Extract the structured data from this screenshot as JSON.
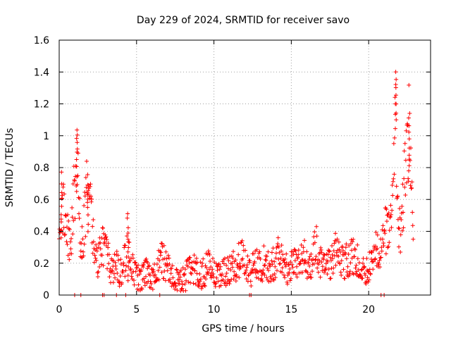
{
  "chart_data": {
    "type": "scatter",
    "title": "Day 229 of 2024, SRMTID for receiver savo",
    "xlabel": "GPS time / hours",
    "ylabel": "SRMTID / TECUs",
    "xlim": [
      0,
      24
    ],
    "ylim": [
      0,
      1.6
    ],
    "xticks": [
      0,
      5,
      10,
      15,
      20
    ],
    "xtick_labels": [
      "0",
      "5",
      "10",
      "15",
      "20"
    ],
    "yticks": [
      0,
      0.2,
      0.4,
      0.6,
      0.8,
      1,
      1.2,
      1.4,
      1.6
    ],
    "ytick_labels": [
      "0",
      "0.2",
      "0.4",
      "0.6",
      "0.8",
      "1",
      "1.2",
      "1.4",
      "1.6"
    ],
    "grid": true,
    "marker": "+",
    "series": [
      {
        "name": "savo",
        "color": "#ff0000",
        "profile": [
          [
            0.0,
            0.55
          ],
          [
            0.15,
            0.65
          ],
          [
            0.3,
            0.5
          ],
          [
            0.45,
            0.4
          ],
          [
            0.6,
            0.38
          ],
          [
            0.75,
            0.3
          ],
          [
            0.9,
            0.55
          ],
          [
            1.05,
            0.75
          ],
          [
            1.15,
            0.95
          ],
          [
            1.25,
            0.6
          ],
          [
            1.4,
            0.3
          ],
          [
            1.55,
            0.35
          ],
          [
            1.7,
            0.55
          ],
          [
            1.85,
            0.72
          ],
          [
            2.0,
            0.65
          ],
          [
            2.15,
            0.4
          ],
          [
            2.3,
            0.28
          ],
          [
            2.5,
            0.22
          ],
          [
            2.7,
            0.28
          ],
          [
            2.9,
            0.3
          ],
          [
            3.1,
            0.25
          ],
          [
            3.3,
            0.18
          ],
          [
            3.5,
            0.15
          ],
          [
            3.7,
            0.2
          ],
          [
            3.9,
            0.15
          ],
          [
            4.1,
            0.14
          ],
          [
            4.3,
            0.25
          ],
          [
            4.45,
            0.4
          ],
          [
            4.6,
            0.22
          ],
          [
            4.8,
            0.15
          ],
          [
            5.0,
            0.12
          ],
          [
            5.2,
            0.1
          ],
          [
            5.4,
            0.12
          ],
          [
            5.6,
            0.14
          ],
          [
            5.8,
            0.12
          ],
          [
            6.0,
            0.1
          ],
          [
            6.2,
            0.15
          ],
          [
            6.4,
            0.2
          ],
          [
            6.6,
            0.22
          ],
          [
            6.8,
            0.2
          ],
          [
            7.0,
            0.17
          ],
          [
            7.2,
            0.14
          ],
          [
            7.4,
            0.1
          ],
          [
            7.6,
            0.08
          ],
          [
            7.8,
            0.07
          ],
          [
            8.0,
            0.09
          ],
          [
            8.2,
            0.12
          ],
          [
            8.4,
            0.16
          ],
          [
            8.6,
            0.18
          ],
          [
            8.8,
            0.16
          ],
          [
            9.0,
            0.14
          ],
          [
            9.2,
            0.12
          ],
          [
            9.4,
            0.15
          ],
          [
            9.6,
            0.18
          ],
          [
            9.8,
            0.16
          ],
          [
            10.0,
            0.14
          ],
          [
            10.3,
            0.15
          ],
          [
            10.6,
            0.13
          ],
          [
            10.9,
            0.15
          ],
          [
            11.2,
            0.18
          ],
          [
            11.5,
            0.2
          ],
          [
            11.8,
            0.24
          ],
          [
            12.1,
            0.18
          ],
          [
            12.4,
            0.14
          ],
          [
            12.7,
            0.2
          ],
          [
            13.0,
            0.17
          ],
          [
            13.3,
            0.22
          ],
          [
            13.6,
            0.16
          ],
          [
            13.9,
            0.2
          ],
          [
            14.2,
            0.26
          ],
          [
            14.5,
            0.18
          ],
          [
            14.8,
            0.15
          ],
          [
            15.1,
            0.2
          ],
          [
            15.4,
            0.17
          ],
          [
            15.7,
            0.24
          ],
          [
            16.0,
            0.22
          ],
          [
            16.3,
            0.19
          ],
          [
            16.6,
            0.32
          ],
          [
            16.9,
            0.2
          ],
          [
            17.2,
            0.15
          ],
          [
            17.5,
            0.2
          ],
          [
            17.8,
            0.28
          ],
          [
            18.1,
            0.24
          ],
          [
            18.4,
            0.2
          ],
          [
            18.7,
            0.22
          ],
          [
            19.0,
            0.25
          ],
          [
            19.3,
            0.2
          ],
          [
            19.6,
            0.18
          ],
          [
            19.9,
            0.14
          ],
          [
            20.2,
            0.22
          ],
          [
            20.5,
            0.3
          ],
          [
            20.8,
            0.25
          ],
          [
            21.0,
            0.4
          ],
          [
            21.2,
            0.38
          ],
          [
            21.4,
            0.45
          ],
          [
            21.6,
            0.7
          ],
          [
            21.75,
            1.1
          ],
          [
            21.9,
            0.5
          ],
          [
            22.05,
            0.35
          ],
          [
            22.2,
            0.55
          ],
          [
            22.35,
            0.75
          ],
          [
            22.5,
            0.95
          ],
          [
            22.6,
            1.05
          ],
          [
            22.7,
            0.8
          ],
          [
            22.8,
            0.55
          ],
          [
            22.9,
            0.45
          ]
        ],
        "peaks": [
          [
            1.15,
            1.01
          ],
          [
            21.75,
            1.41
          ],
          [
            22.6,
            1.13
          ],
          [
            0.15,
            0.71
          ],
          [
            1.85,
            0.76
          ],
          [
            4.45,
            0.44
          ]
        ],
        "baseline_zero_x": [
          1.0,
          1.4,
          2.8,
          2.9,
          3.7,
          4.3,
          6.5,
          12.3,
          12.4,
          20.8,
          21.0
        ]
      }
    ]
  }
}
